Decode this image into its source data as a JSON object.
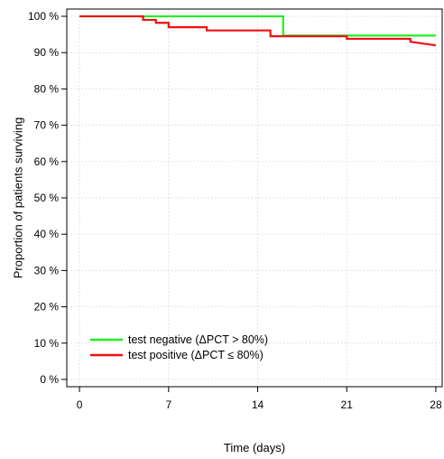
{
  "chart_data": {
    "type": "line",
    "step": true,
    "title": "",
    "xlabel": "Time (days)",
    "ylabel": "Proportion of patients surviving",
    "xlim": [
      -1,
      28.5
    ],
    "ylim": [
      -0.02,
      1.02
    ],
    "x_ticks": [
      0,
      7,
      14,
      21,
      28
    ],
    "x_tick_labels": [
      "0",
      "7",
      "14",
      "21",
      "28"
    ],
    "y_ticks": [
      0,
      0.1,
      0.2,
      0.3,
      0.4,
      0.5,
      0.6,
      0.7,
      0.8,
      0.9,
      1.0
    ],
    "y_tick_labels": [
      "0 %",
      "10 %",
      "20 %",
      "30 %",
      "40 %",
      "50 %",
      "60 %",
      "70 %",
      "80 %",
      "90 %",
      "100 %"
    ],
    "grid": true,
    "legend_position": "bottom-left",
    "series": [
      {
        "name": "test negative (ΔPCT > 80%)",
        "color": "#22ee22",
        "x": [
          0,
          16,
          16,
          28
        ],
        "y": [
          1.0,
          1.0,
          0.947,
          0.947
        ]
      },
      {
        "name": "test positive (ΔPCT ≤ 80%)",
        "color": "#ee1111",
        "x": [
          0,
          5,
          5,
          6,
          6,
          7,
          7,
          10,
          10,
          15,
          15,
          21,
          21,
          26,
          26,
          28
        ],
        "y": [
          1.0,
          1.0,
          0.99,
          0.99,
          0.982,
          0.982,
          0.97,
          0.97,
          0.961,
          0.961,
          0.945,
          0.945,
          0.938,
          0.938,
          0.93,
          0.92
        ]
      }
    ]
  }
}
